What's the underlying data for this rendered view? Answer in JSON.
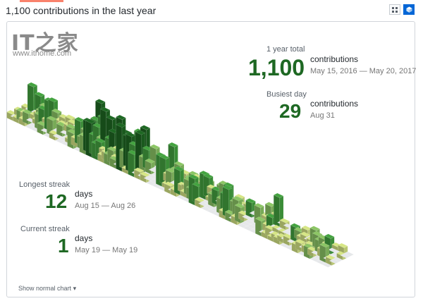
{
  "header": {
    "title": "1,100 contributions in the last year"
  },
  "toggle": {
    "grid_icon": "grid-icon",
    "cube_icon": "cube-icon"
  },
  "watermark": {
    "logo": "IT之家",
    "url": "www.ithome.com"
  },
  "year_total": {
    "label": "1 year total",
    "value": "1,100",
    "unit": "contributions",
    "range": "May 15, 2016 — May 20, 2017"
  },
  "busiest_day": {
    "label": "Busiest day",
    "value": "29",
    "unit": "contributions",
    "date": "Aug 31"
  },
  "longest_streak": {
    "label": "Longest streak",
    "value": "12",
    "unit": "days",
    "range": "Aug 15 — Aug 26"
  },
  "current_streak": {
    "label": "Current streak",
    "value": "1",
    "unit": "days",
    "range": "May 19 — May 19"
  },
  "footer": {
    "show_normal_chart": "Show normal chart"
  },
  "colors": {
    "empty": "#e6e8ea",
    "level1": "#d6e685",
    "level2": "#8cc665",
    "level3": "#44a340",
    "level4": "#1e6823",
    "accent": "#1e6823"
  }
}
